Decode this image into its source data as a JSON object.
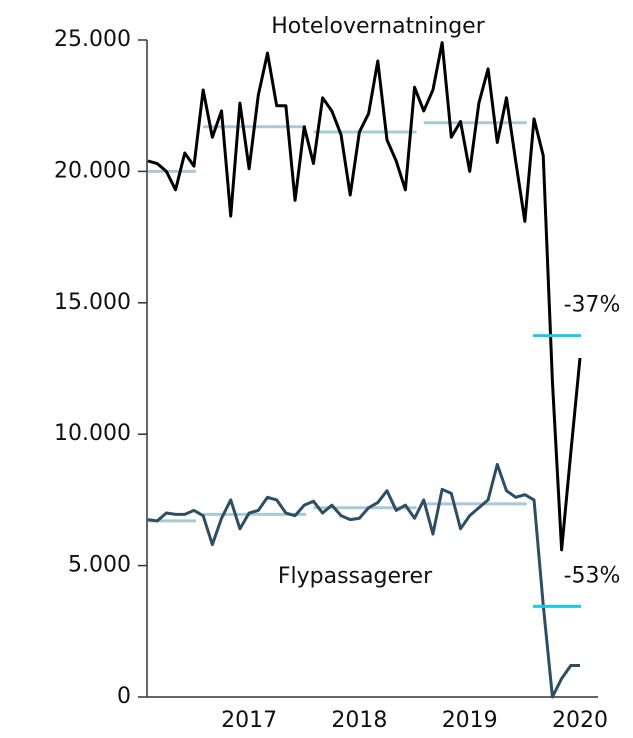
{
  "chart_data": {
    "type": "line",
    "categories": [
      null,
      null,
      null,
      null,
      null,
      null,
      null,
      null,
      null,
      null,
      null,
      "2017",
      null,
      null,
      null,
      null,
      null,
      null,
      null,
      null,
      null,
      null,
      null,
      "2018",
      null,
      null,
      null,
      null,
      null,
      null,
      null,
      null,
      null,
      null,
      null,
      "2019",
      null,
      null,
      null,
      null,
      null,
      null,
      null,
      null,
      null,
      null,
      null,
      "2020"
    ],
    "series": [
      {
        "name": "Hotelovernatninger",
        "color": "#000000",
        "values": [
          20400,
          20300,
          20000,
          19300,
          20700,
          20200,
          23100,
          21300,
          22300,
          18300,
          22600,
          20100,
          22900,
          24500,
          22500,
          22500,
          18900,
          21700,
          20300,
          22800,
          22300,
          21400,
          19100,
          21500,
          22200,
          24200,
          21200,
          20400,
          19300,
          23200,
          22300,
          23100,
          24900,
          21300,
          21900,
          20000,
          22600,
          23900,
          21100,
          22800,
          20400,
          18100,
          22000,
          20600,
          12000,
          5600,
          9300,
          12900
        ],
        "annual_averages": [
          20000,
          21700,
          21500,
          21850
        ],
        "average_color": "#a9c8d8",
        "latest_level": 13750,
        "latest_color": "#1ec8e6",
        "change_label": "-37%"
      },
      {
        "name": "Flypassagerer",
        "color": "#2e4e63",
        "values": [
          6750,
          6700,
          7000,
          6950,
          6950,
          7100,
          6900,
          5800,
          6800,
          7500,
          6400,
          7000,
          7100,
          7600,
          7500,
          7000,
          6900,
          7300,
          7450,
          7000,
          7300,
          6900,
          6750,
          6800,
          7200,
          7400,
          7850,
          7100,
          7300,
          6800,
          7500,
          6200,
          7900,
          7750,
          6400,
          6900,
          7200,
          7500,
          8850,
          7850,
          7600,
          7700,
          7500,
          3500,
          0,
          700,
          1200,
          1200
        ],
        "annual_averages": [
          6700,
          6950,
          7200,
          7350
        ],
        "average_color": "#a9c8d8",
        "latest_level": 3450,
        "latest_color": "#1ec8e6",
        "change_label": "-53%"
      }
    ],
    "ylim": [
      0,
      25000
    ],
    "yticks": [
      0,
      {
        "value": 5000,
        "label": "5.000"
      },
      {
        "value": 10000,
        "label": "10.000"
      },
      {
        "value": 15000,
        "label": "15.000"
      },
      {
        "value": 20000,
        "label": "20.000"
      },
      {
        "value": 25000,
        "label": "25.000"
      }
    ]
  }
}
